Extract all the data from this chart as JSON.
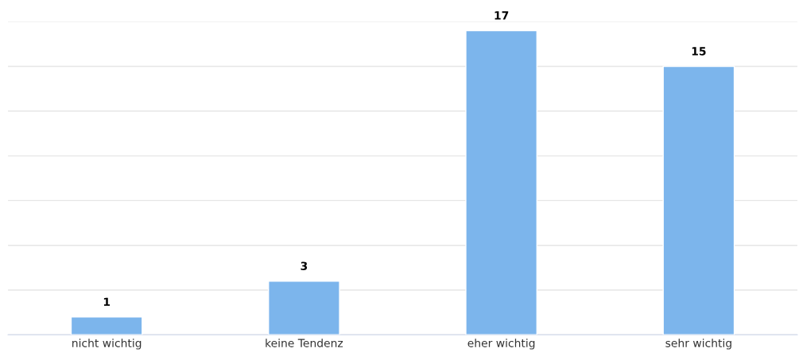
{
  "chart_data": {
    "type": "bar",
    "categories": [
      "nicht wichtig",
      "keine Tendenz",
      "eher wichtig",
      "sehr wichtig"
    ],
    "values": [
      1,
      3,
      17,
      15
    ],
    "color": "#7cb5ec",
    "ylim": [
      0,
      17.5
    ],
    "yticks": [
      {
        "value": 0,
        "label": null
      },
      {
        "value": 2.5,
        "label": null
      },
      {
        "value": 5,
        "label": null
      },
      {
        "value": 7.5,
        "label": null
      },
      {
        "value": 10,
        "label": null
      },
      {
        "value": 12.5,
        "label": null
      },
      {
        "value": 15,
        "label": null
      },
      {
        "value": 17.5,
        "label": null
      }
    ],
    "grid": "y",
    "data_labels": true,
    "tick_labels": "x"
  }
}
